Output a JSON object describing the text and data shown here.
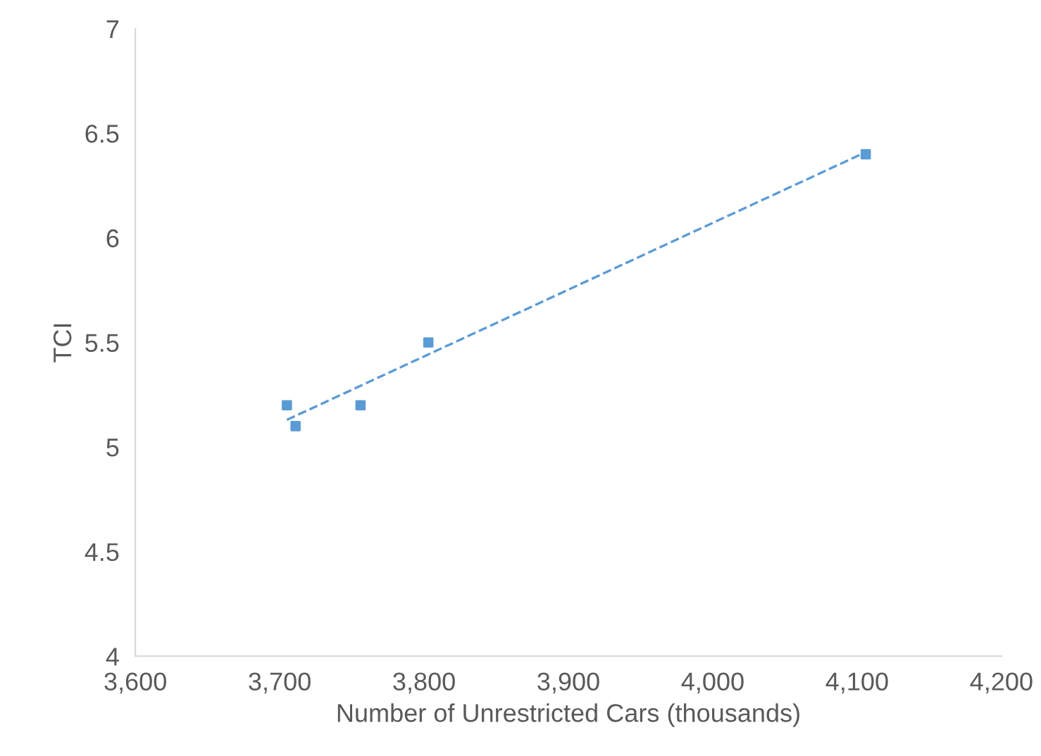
{
  "chart_data": {
    "type": "scatter",
    "xlabel": "Number of Unrestricted Cars (thousands)",
    "ylabel": "TCI",
    "series": [
      {
        "color": "#5b9bd5",
        "marker": "square",
        "x": [
          3705,
          3711,
          3756,
          3803,
          4106
        ],
        "values": [
          5.2,
          5.1,
          5.2,
          5.5,
          6.4
        ]
      },
      {
        "type": "line",
        "color": "#5b9bd5",
        "line_style": "dashed",
        "marker": "none",
        "x": [
          3705,
          4106
        ],
        "values": [
          5.13,
          6.41
        ]
      }
    ],
    "xlim": [
      3600,
      4200
    ],
    "xticks": [
      {
        "value": 3600,
        "label": "3,600"
      },
      {
        "value": 3700,
        "label": "3,700"
      },
      {
        "value": 3800,
        "label": "3,800"
      },
      {
        "value": 3900,
        "label": "3,900"
      },
      {
        "value": 4000,
        "label": "4,000"
      },
      {
        "value": 4100,
        "label": "4,100"
      },
      {
        "value": 4200,
        "label": "4,200"
      }
    ],
    "ylim": [
      4,
      7
    ],
    "yticks": [
      4,
      4.5,
      5,
      5.5,
      6,
      6.5,
      7
    ],
    "grid": false
  }
}
